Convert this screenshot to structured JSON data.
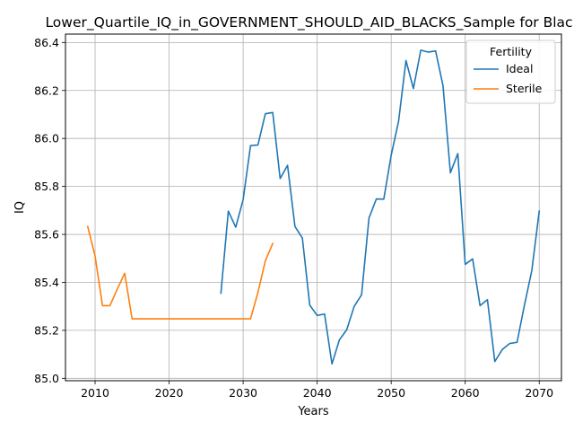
{
  "chart_data": {
    "type": "line",
    "title": "Lower_Quartile_IQ_in_GOVERNMENT_SHOULD_AID_BLACKS_Sample for Black",
    "xlabel": "Years",
    "ylabel": "IQ",
    "xlim": [
      2006,
      2073
    ],
    "ylim": [
      84.99,
      86.435
    ],
    "xticks": [
      2010,
      2020,
      2030,
      2040,
      2050,
      2060,
      2070
    ],
    "yticks": [
      85.0,
      85.2,
      85.4,
      85.6,
      85.8,
      86.0,
      86.2,
      86.4
    ],
    "grid": true,
    "legend": {
      "title": "Fertility",
      "placement": "top-right"
    },
    "series": [
      {
        "name": "Ideal",
        "color": "#1f77b4",
        "x": [
          2027,
          2028,
          2029,
          2030,
          2031,
          2032,
          2033,
          2034,
          2035,
          2036,
          2037,
          2038,
          2039,
          2040,
          2041,
          2042,
          2043,
          2044,
          2045,
          2046,
          2047,
          2048,
          2049,
          2050,
          2051,
          2052,
          2053,
          2054,
          2055,
          2056,
          2057,
          2058,
          2059,
          2060,
          2061,
          2062,
          2063,
          2064,
          2065,
          2066,
          2067,
          2068,
          2069,
          2070
        ],
        "y": [
          85.355,
          85.697,
          85.63,
          85.745,
          85.97,
          85.973,
          86.103,
          86.108,
          85.833,
          85.888,
          85.633,
          85.585,
          85.305,
          85.262,
          85.268,
          85.06,
          85.16,
          85.203,
          85.3,
          85.348,
          85.668,
          85.748,
          85.747,
          85.93,
          86.072,
          86.325,
          86.208,
          86.368,
          86.36,
          86.365,
          86.22,
          85.857,
          85.937,
          85.475,
          85.498,
          85.303,
          85.328,
          85.07,
          85.12,
          85.145,
          85.15,
          85.305,
          85.45,
          85.697
        ]
      },
      {
        "name": "Sterile",
        "color": "#ff7f0e",
        "x": [
          2009,
          2010,
          2011,
          2012,
          2013,
          2014,
          2015,
          2016,
          2017,
          2018,
          2019,
          2020,
          2021,
          2022,
          2023,
          2024,
          2025,
          2026,
          2027,
          2028,
          2029,
          2030,
          2031,
          2032,
          2033,
          2034
        ],
        "y": [
          85.633,
          85.51,
          85.303,
          85.303,
          85.372,
          85.438,
          85.248,
          85.248,
          85.248,
          85.248,
          85.248,
          85.248,
          85.248,
          85.248,
          85.248,
          85.248,
          85.248,
          85.248,
          85.248,
          85.248,
          85.248,
          85.248,
          85.248,
          85.358,
          85.49,
          85.562
        ]
      }
    ]
  }
}
